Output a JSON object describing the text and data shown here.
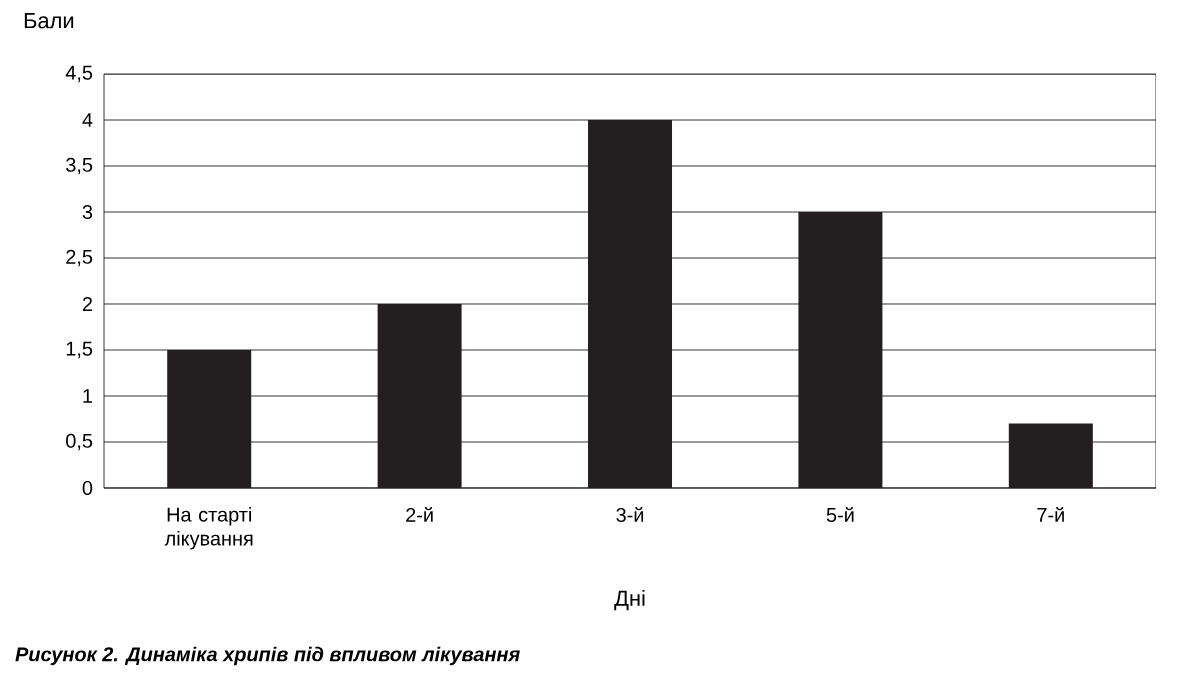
{
  "chart_data": {
    "type": "bar",
    "ylabel": "Бали",
    "xlabel": "Дні",
    "categories": [
      "На старті лікування",
      "2-й",
      "3-й",
      "5-й",
      "7-й"
    ],
    "values": [
      1.5,
      2,
      4,
      3,
      0.7
    ],
    "color": "#231f20",
    "ylim": [
      0,
      4.5
    ],
    "yticks": [
      0,
      {
        "value": 0.5,
        "label": "0,5"
      },
      1,
      {
        "value": 1.5,
        "label": "1,5"
      },
      2,
      {
        "value": 2.5,
        "label": "2,5"
      },
      3,
      {
        "value": 3.5,
        "label": "3,5"
      },
      4,
      {
        "value": 4.5,
        "label": "4,5"
      }
    ],
    "grid": "y",
    "annotations": [
      "Рисунок 2. Динаміка хрипів під впливом лікування"
    ]
  }
}
